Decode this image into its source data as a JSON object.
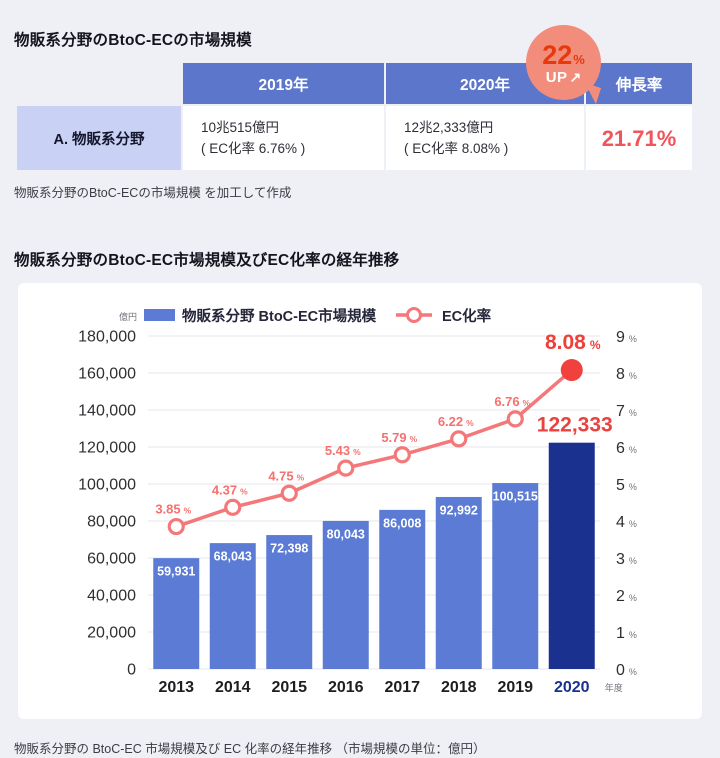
{
  "colors": {
    "page_bg": "#eff0f5",
    "header_blue": "#5b76ca",
    "label_cell_blue": "#c9d2f4",
    "growth_red": "#f0555c",
    "badge_bg": "#f28d7c",
    "badge_text_red": "#e8380d",
    "bar_blue": "#5b7bd5",
    "bar_highlight_navy": "#1a3190",
    "line_salmon": "#f4777a",
    "emphasis_red": "#f0413c",
    "gridline": "#e7e7ec"
  },
  "summary": {
    "title": "物販系分野のBtoC-ECの市場規模",
    "badge": {
      "value": "22",
      "unit": "%",
      "label": "UP",
      "arrow": "↗"
    },
    "table": {
      "columns": [
        "2019年",
        "2020年",
        "伸長率"
      ],
      "row_label": "A. 物販系分野",
      "cells": {
        "y2019": {
          "value": "10兆515億円",
          "sub": "( EC化率 6.76% )"
        },
        "y2020": {
          "value": "12兆2,333億円",
          "sub": "( EC化率 8.08% )"
        },
        "growth": "21.71%"
      }
    },
    "source_note": "物販系分野のBtoC-ECの市場規模 を加工して作成"
  },
  "trend": {
    "title": "物販系分野のBtoC-EC市場規模及びEC化率の経年推移",
    "caption": "物販系分野の BtoC-EC 市場規模及び EC 化率の経年推移 （市場規模の単位：億円）"
  },
  "chart_data": {
    "type": "bar+line",
    "categories": [
      "2013",
      "2014",
      "2015",
      "2016",
      "2017",
      "2018",
      "2019",
      "2020"
    ],
    "series": [
      {
        "name": "物販系分野 BtoC-EC市場規模",
        "type": "bar",
        "axis": "left",
        "values": [
          59931,
          68043,
          72398,
          80043,
          86008,
          92992,
          100515,
          122333
        ],
        "labels": [
          "59,931",
          "68,043",
          "72,398",
          "80,043",
          "86,008",
          "92,992",
          "100,515",
          "122,333"
        ]
      },
      {
        "name": "EC化率",
        "type": "line",
        "axis": "right",
        "values": [
          3.85,
          4.37,
          4.75,
          5.43,
          5.79,
          6.22,
          6.76,
          8.08
        ],
        "labels": [
          "3.85",
          "4.37",
          "4.75",
          "5.43",
          "5.79",
          "6.22",
          "6.76",
          "8.08"
        ]
      }
    ],
    "left_axis": {
      "unit": "億円",
      "min": 0,
      "max": 180000,
      "step": 20000
    },
    "right_axis": {
      "unit": "%",
      "min": 0,
      "max": 9,
      "step": 1
    },
    "x_axis_suffix": "年度",
    "highlight_index": 7,
    "grid": true,
    "legend_position": "top"
  }
}
